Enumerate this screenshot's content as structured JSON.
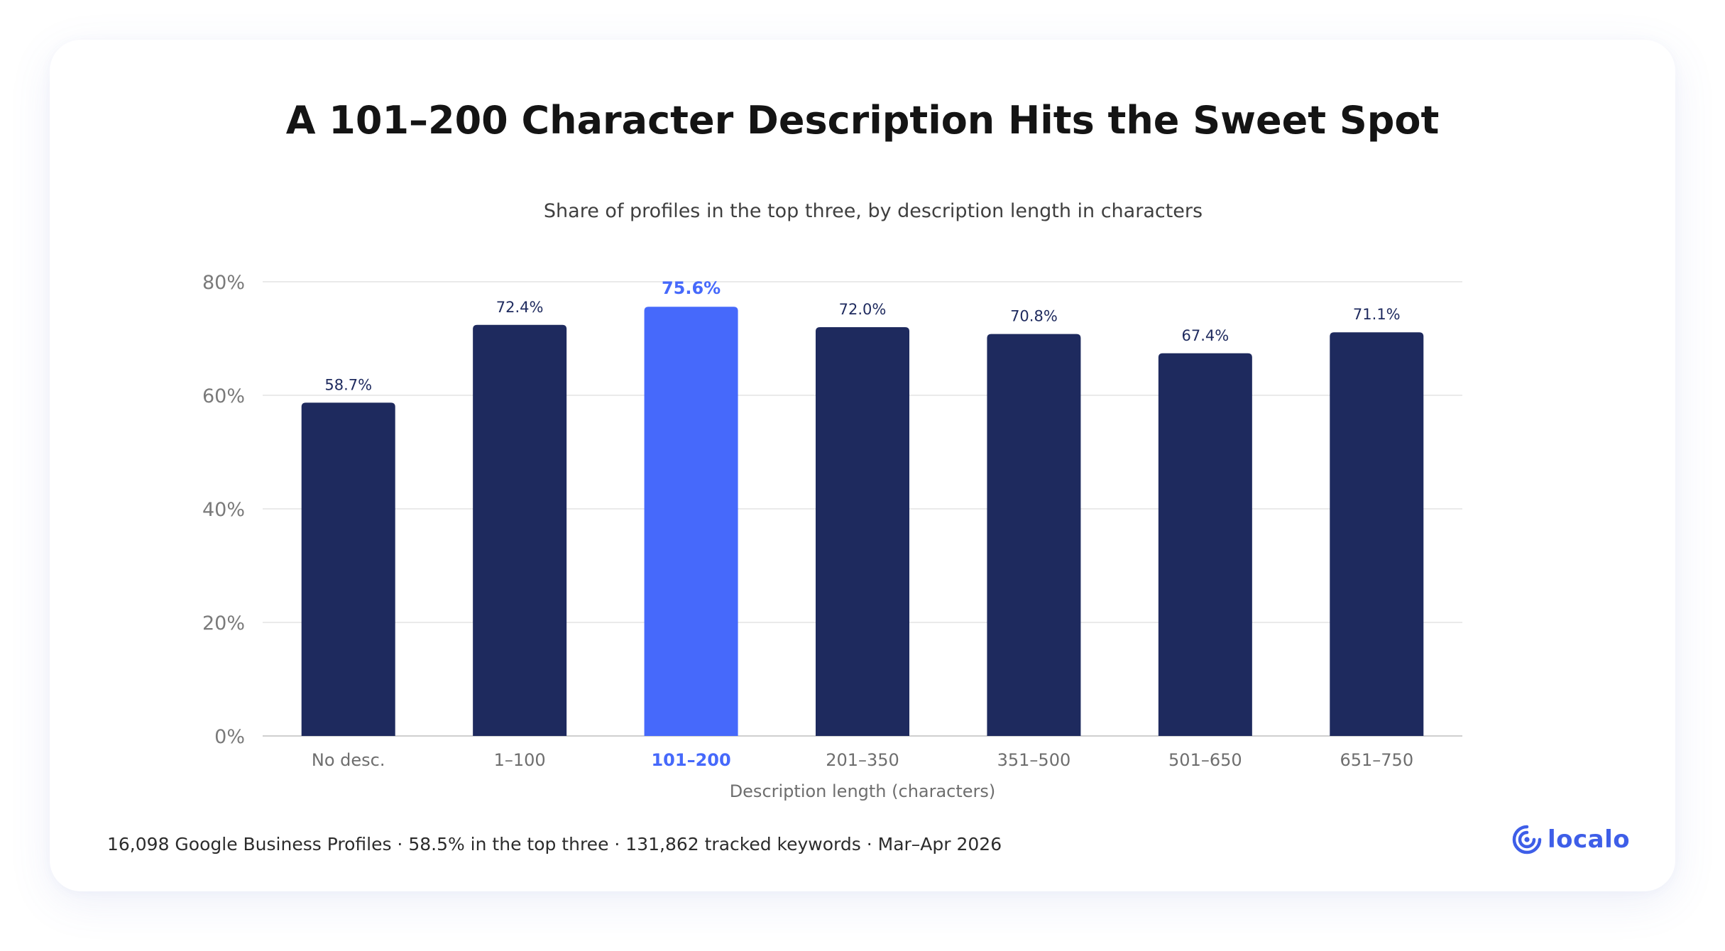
{
  "header": {
    "title": "A 101–200 Character Description Hits the Sweet Spot"
  },
  "chart_data": {
    "type": "bar",
    "subtitle": "Share of profiles in the top three, by description length in characters",
    "xlabel": "Description length (characters)",
    "ylabel": "",
    "categories": [
      "No desc.",
      "1–100",
      "101–200",
      "201–350",
      "351–500",
      "501–650",
      "651–750"
    ],
    "values": [
      58.7,
      72.4,
      75.6,
      72.0,
      70.8,
      67.4,
      71.1
    ],
    "value_labels": [
      "58.7%",
      "72.4%",
      "75.6%",
      "72.0%",
      "70.8%",
      "67.4%",
      "71.1%"
    ],
    "highlight_category": "101–200",
    "ylim": [
      0,
      80
    ],
    "yticks": [
      0,
      20,
      40,
      60,
      80
    ],
    "ytick_labels": [
      "0%",
      "20%",
      "40%",
      "60%",
      "80%"
    ],
    "grid": true,
    "colors": {
      "bar": "#1e2a5e",
      "highlight": "#4669fb",
      "grid": "#e3e3e3",
      "axis": "#cfcfcf",
      "tick_text": "#7a7a7a",
      "value_text": "#1e2a5e"
    }
  },
  "footer": {
    "note": "16,098 Google Business Profiles · 58.5% in the top three · 131,862 tracked keywords · Mar–Apr 2026",
    "logo_text": "localo",
    "logo_icon": "location-pin-icon",
    "logo_color": "#3e5ee8"
  }
}
